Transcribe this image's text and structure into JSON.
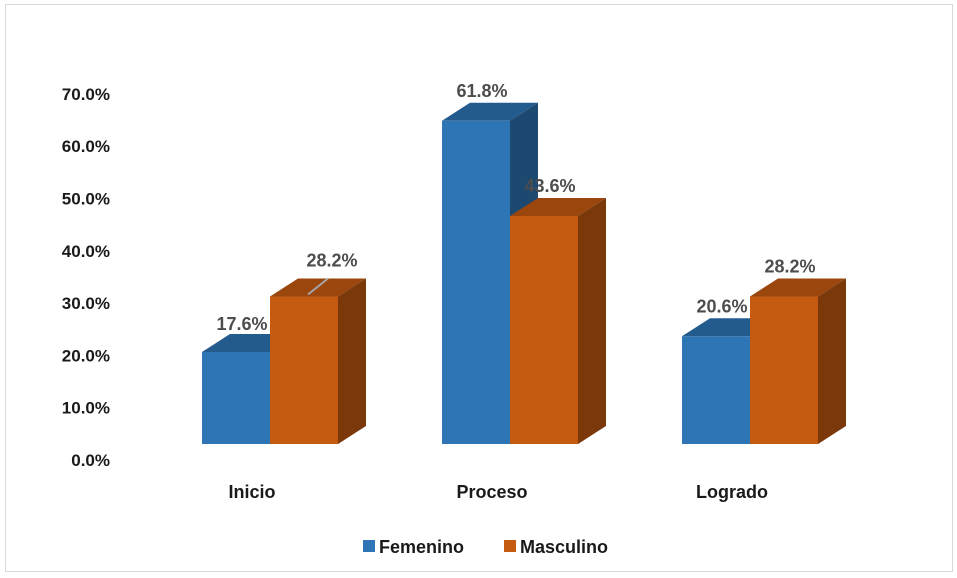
{
  "chart_data": {
    "type": "bar",
    "categories": [
      "Inicio",
      "Proceso",
      "Logrado"
    ],
    "series": [
      {
        "name": "Femenino",
        "values": [
          17.6,
          61.8,
          20.6
        ],
        "color": "#2e75b6",
        "labels": [
          "17.6%",
          "61.8%",
          "20.6%"
        ]
      },
      {
        "name": "Masculino",
        "values": [
          28.2,
          43.6,
          28.2
        ],
        "color": "#c55a11",
        "labels": [
          "28.2%",
          "43.6%",
          "28.2%"
        ]
      }
    ],
    "ylim": [
      0,
      70
    ],
    "yticks": [
      "0.0%",
      "10.0%",
      "20.0%",
      "30.0%",
      "40.0%",
      "50.0%",
      "60.0%",
      "70.0%"
    ],
    "title": "",
    "xlabel": "",
    "ylabel": "",
    "legend_position": "bottom",
    "style": "3d-clustered-column",
    "grid": false
  }
}
